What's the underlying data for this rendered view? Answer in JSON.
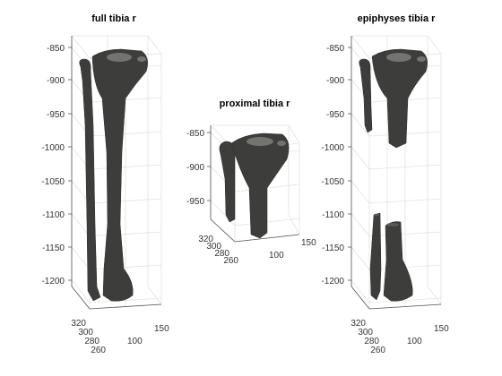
{
  "figure": {
    "background": "#ffffff",
    "bone_color": "#3d3d3b",
    "bone_highlight": "#8a8a86",
    "grid_color": "#e2e2e2",
    "axis_color": "#555555"
  },
  "chart_data": [
    {
      "type": "3d-surface",
      "title": "full tibia r",
      "zlim": [
        -1235,
        -845
      ],
      "z_ticks": [
        "-850",
        "-900",
        "-950",
        "-1000",
        "-1050",
        "-1100",
        "-1150",
        "-1200"
      ],
      "x_ticks": [
        "320",
        "300",
        "280",
        "260"
      ],
      "y_ticks": [
        "100",
        "150"
      ],
      "grid": true
    },
    {
      "type": "3d-surface",
      "title": "proximal tibia r",
      "z_ticks": [
        "-850",
        "-900",
        "-950"
      ],
      "x_ticks": [
        "320",
        "300",
        "280",
        "260"
      ],
      "y_ticks": [
        "100",
        "150"
      ],
      "grid": true
    },
    {
      "type": "3d-surface",
      "title": "epiphyses tibia r",
      "zlim": [
        -1235,
        -845
      ],
      "z_ticks": [
        "-850",
        "-900",
        "-950",
        "-1000",
        "-1050",
        "-1100",
        "-1150",
        "-1200"
      ],
      "x_ticks": [
        "320",
        "300",
        "280",
        "260"
      ],
      "y_ticks": [
        "100",
        "150"
      ],
      "grid": true
    }
  ]
}
